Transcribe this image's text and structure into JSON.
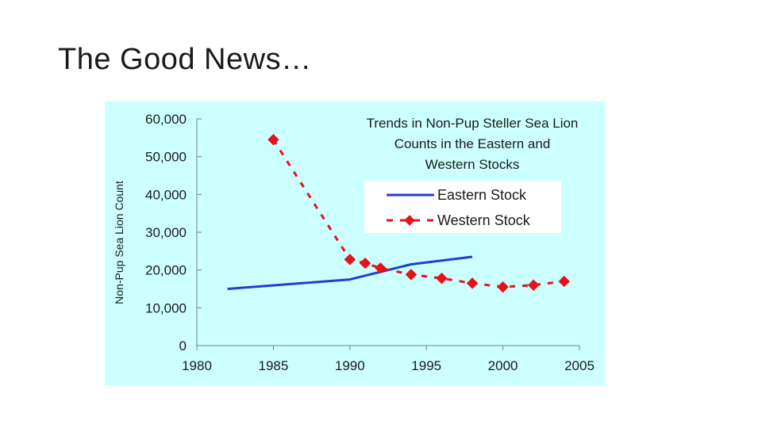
{
  "slide": {
    "title": "The Good News…"
  },
  "chart_data": {
    "type": "line",
    "title_lines": [
      "Trends in Non-Pup Steller Sea Lion",
      "Counts in the Eastern and",
      "Western Stocks"
    ],
    "xlabel": "",
    "ylabel": "Non-Pup Sea Lion Count",
    "xlim": [
      1980,
      2005
    ],
    "ylim": [
      0,
      60000
    ],
    "x_ticks": [
      1980,
      1985,
      1990,
      1995,
      2000,
      2005
    ],
    "x_tick_labels": [
      "1980",
      "1985",
      "1990",
      "1995",
      "2000",
      "2005"
    ],
    "y_ticks": [
      0,
      10000,
      20000,
      30000,
      40000,
      50000,
      60000
    ],
    "y_tick_labels": [
      "0",
      "10,000",
      "20,000",
      "30,000",
      "40,000",
      "50,000",
      "60,000"
    ],
    "grid": false,
    "legend_position": "top-right",
    "series": [
      {
        "name": "Eastern Stock",
        "color": "#1f3fd0",
        "style": "solid",
        "marker": "none",
        "points": [
          [
            1982,
            15000
          ],
          [
            1990,
            17500
          ],
          [
            1994,
            21500
          ],
          [
            1998,
            23500
          ]
        ]
      },
      {
        "name": "Western Stock",
        "color": "#e8101a",
        "style": "dashed",
        "marker": "diamond",
        "points": [
          [
            1985,
            54500
          ],
          [
            1990,
            22800
          ],
          [
            1991,
            21800
          ],
          [
            1992,
            20500
          ],
          [
            1994,
            18800
          ],
          [
            1996,
            17800
          ],
          [
            1998,
            16500
          ],
          [
            2000,
            15500
          ],
          [
            2002,
            16000
          ],
          [
            2004,
            17000
          ]
        ]
      }
    ]
  }
}
